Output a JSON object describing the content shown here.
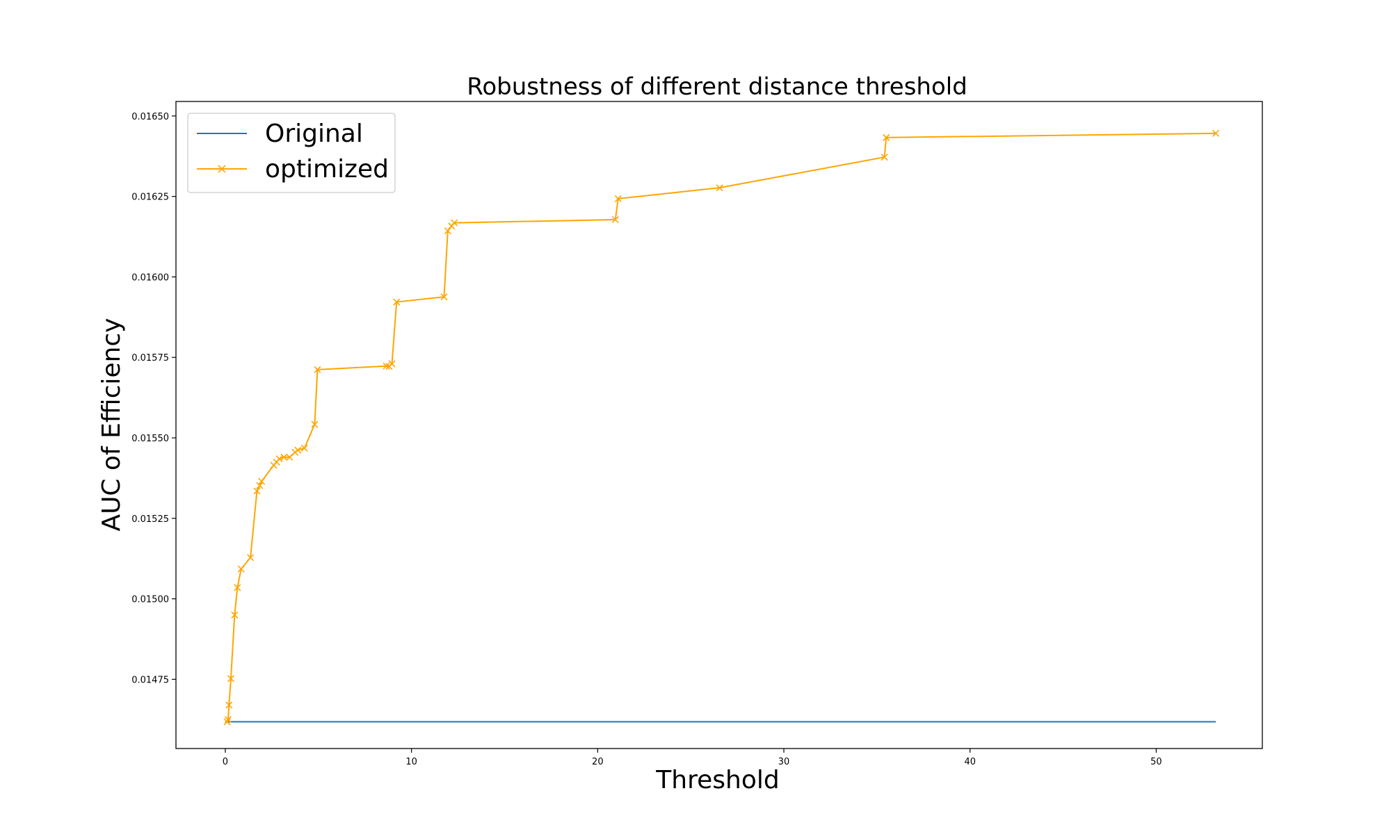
{
  "chart_data": {
    "type": "line",
    "title": "Robustness of different distance threshold",
    "xlabel": "Threshold",
    "ylabel": "AUC of Efficiency",
    "xlim": [
      -2.65,
      55.7
    ],
    "ylim": [
      0.014535,
      0.016545
    ],
    "xticks": [
      0,
      10,
      20,
      30,
      40,
      50
    ],
    "xtick_labels": [
      "0",
      "10",
      "20",
      "30",
      "40",
      "50"
    ],
    "yticks": [
      0.01475,
      0.015,
      0.01525,
      0.0155,
      0.01575,
      0.016,
      0.01625,
      0.0165
    ],
    "ytick_labels": [
      "0.01475",
      "0.01500",
      "0.01525",
      "0.01550",
      "0.01575",
      "0.01600",
      "0.01625",
      "0.01650"
    ],
    "grid": false,
    "legend_position": "top-left",
    "series": [
      {
        "name": "Original",
        "color": "#1f77b4",
        "marker": "none",
        "x": [
          0.1,
          53.2
        ],
        "y": [
          0.014618,
          0.014618
        ]
      },
      {
        "name": "optimized",
        "color": "#ffa500",
        "marker": "x",
        "x": [
          0.1,
          0.15,
          0.2,
          0.3,
          0.5,
          0.65,
          0.85,
          1.35,
          1.7,
          1.85,
          1.95,
          2.6,
          2.75,
          2.9,
          3.15,
          3.45,
          3.75,
          3.9,
          4.25,
          4.8,
          4.95,
          8.65,
          8.8,
          8.95,
          9.2,
          11.75,
          11.95,
          12.15,
          12.3,
          20.95,
          21.1,
          26.55,
          35.4,
          35.5,
          53.2
        ],
        "y": [
          0.014618,
          0.014625,
          0.01467,
          0.014752,
          0.01495,
          0.015035,
          0.015093,
          0.015128,
          0.015335,
          0.015352,
          0.015365,
          0.015415,
          0.015425,
          0.015435,
          0.01544,
          0.01544,
          0.015455,
          0.015462,
          0.015468,
          0.015542,
          0.015712,
          0.015723,
          0.015722,
          0.01573,
          0.015922,
          0.015938,
          0.016143,
          0.016158,
          0.016168,
          0.016178,
          0.016243,
          0.016277,
          0.016372,
          0.016433,
          0.016446
        ]
      }
    ]
  }
}
